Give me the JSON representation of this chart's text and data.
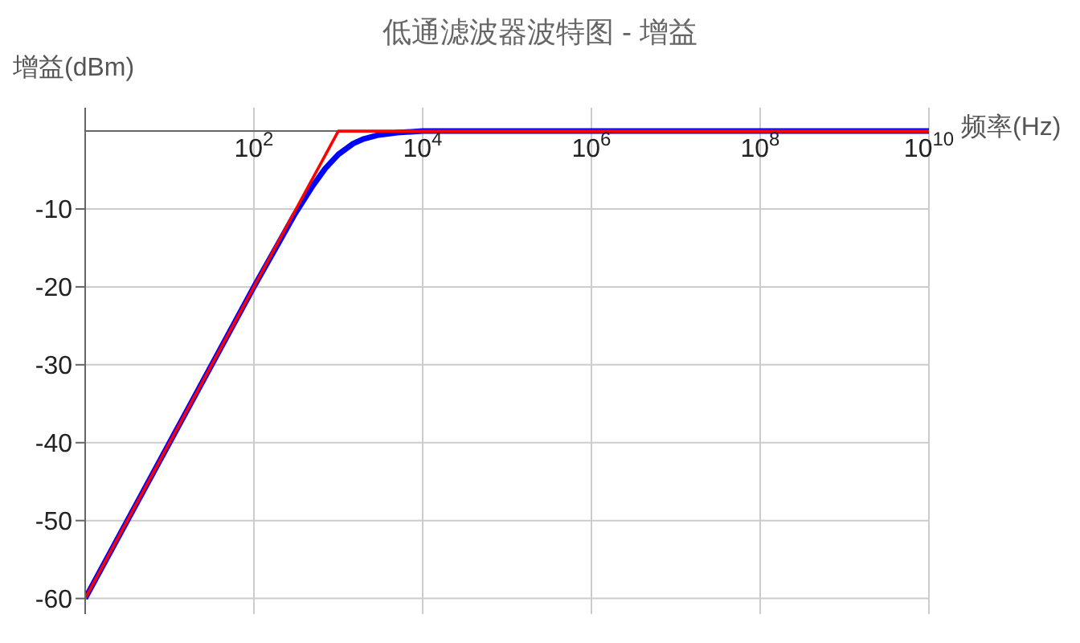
{
  "chart_data": {
    "type": "line",
    "title": "低通滤波器波特图 - 增益",
    "xlabel": "频率(Hz)",
    "ylabel": "增益(dBm)",
    "log": "x",
    "series": [
      {
        "color": "#0000ff",
        "x": [
          1,
          10,
          100,
          200,
          300,
          500,
          700,
          1000,
          1500,
          2000,
          3000,
          5000,
          10000,
          100000,
          10000000000
        ],
        "values": [
          -60,
          -40,
          -20,
          -14.2,
          -10.8,
          -7,
          -4.8,
          -3,
          -1.6,
          -1,
          -0.5,
          -0.2,
          0,
          0,
          0
        ]
      },
      {
        "color": "#ff0000",
        "x": [
          1,
          1000,
          10000000000
        ],
        "values": [
          -60,
          0,
          0
        ]
      }
    ],
    "xlim": [
      1,
      10000000000
    ],
    "xticks": [
      {
        "value": 100,
        "label": "10$^{2}$"
      },
      {
        "value": 10000,
        "label": "10$^{4}$"
      },
      {
        "value": 1000000,
        "label": "10$^{6}$"
      },
      {
        "value": 100000000,
        "label": "10$^{8}$"
      },
      {
        "value": 10000000000,
        "label": "10$^{10}$"
      }
    ],
    "ylim": [
      -62,
      3
    ],
    "yticks": [
      -60,
      -50,
      -40,
      -30,
      -20,
      -10
    ],
    "grid": true,
    "marker": "none",
    "line_style": "solid"
  }
}
